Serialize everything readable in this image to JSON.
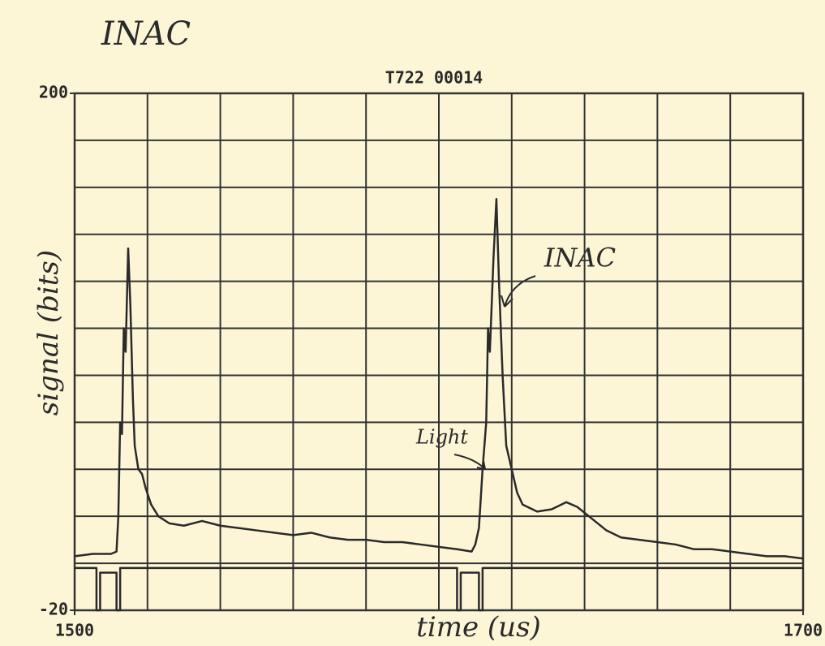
{
  "chart_data": {
    "type": "line",
    "heading": "INAC",
    "title": "T722 00014",
    "xlabel": "time (us)",
    "ylabel": "signal (bits)",
    "xlim": [
      1500,
      1700
    ],
    "ylim": [
      -20,
      200
    ],
    "xticks": [
      1500,
      1700
    ],
    "yticks": [
      -20,
      200
    ],
    "xgrid": [
      1520,
      1540,
      1560,
      1580,
      1600,
      1620,
      1640,
      1660,
      1680
    ],
    "ygrid": [
      0,
      20,
      40,
      60,
      80,
      100,
      120,
      140,
      160,
      180
    ],
    "grid": true,
    "annotations": [
      {
        "text": "INAC"
      },
      {
        "text": "Light"
      }
    ],
    "series": [
      {
        "color": "#2a2a2a",
        "x": [
          1500,
          1505,
          1510,
          1511.5,
          1512,
          1512.5,
          1513,
          1513.5,
          1514,
          1514.7,
          1515.3,
          1516,
          1516.5,
          1517.5,
          1518.5,
          1519.5,
          1521,
          1523,
          1526,
          1530,
          1535,
          1540,
          1545,
          1550,
          1555,
          1560,
          1565,
          1570,
          1575,
          1580,
          1585,
          1590,
          1595,
          1600,
          1605,
          1609,
          1610,
          1611,
          1612,
          1613,
          1613.5,
          1614,
          1615,
          1615.8,
          1616.5,
          1617.5,
          1618.5,
          1620,
          1621.5,
          1623,
          1627,
          1631,
          1635,
          1638,
          1642,
          1646,
          1650,
          1655,
          1660,
          1665,
          1670,
          1675,
          1680,
          1685,
          1690,
          1695,
          1700
        ],
        "values": [
          3,
          4,
          4,
          5,
          20,
          60,
          55,
          100,
          90,
          134,
          110,
          70,
          50,
          40,
          38,
          32,
          25,
          20,
          17,
          16,
          18,
          16,
          15,
          14,
          13,
          12,
          13,
          11,
          10,
          10,
          9,
          9,
          8,
          7,
          6,
          5,
          8,
          15,
          40,
          60,
          100,
          90,
          130,
          155,
          120,
          80,
          50,
          40,
          30,
          25,
          22,
          23,
          26,
          24,
          19,
          14,
          11,
          10,
          9,
          8,
          6,
          6,
          5,
          4,
          3,
          3,
          2
        ]
      },
      {
        "color": "#2a2a2a",
        "x": [
          1500,
          1506,
          1506,
          1507,
          1507,
          1511.5,
          1511.5,
          1512.5,
          1512.5,
          1605,
          1605,
          1606,
          1606,
          1611,
          1611,
          1612,
          1612,
          1700
        ],
        "values": [
          -2,
          -2,
          -20,
          -20,
          -4,
          -4,
          -20,
          -20,
          -2,
          -2,
          -20,
          -20,
          -4,
          -4,
          -20,
          -20,
          -2,
          -2
        ]
      }
    ]
  }
}
